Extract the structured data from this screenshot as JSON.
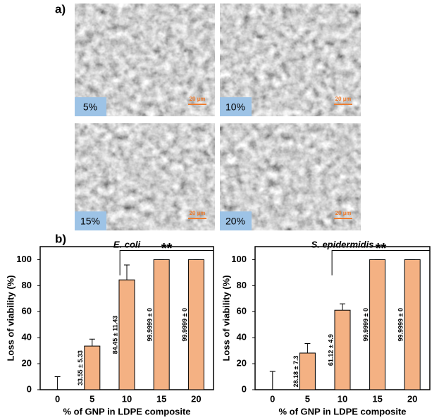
{
  "panels": {
    "a": {
      "label": "a)",
      "images": [
        {
          "label": "5%",
          "scale": "20 µm"
        },
        {
          "label": "10%",
          "scale": "20 µm"
        },
        {
          "label": "15%",
          "scale": "20 µm"
        },
        {
          "label": "20%",
          "scale": "20 µm"
        }
      ]
    },
    "b": {
      "label": "b)"
    }
  },
  "chart_data": [
    {
      "type": "bar",
      "title": "E. coli",
      "x_label": "% of GNP in LDPE composite",
      "y_label": "Loss of viability (%)",
      "categories": [
        "0",
        "5",
        "10",
        "15",
        "20"
      ],
      "values": [
        0,
        33.55,
        84.45,
        99.9999,
        99.9999
      ],
      "errors": [
        10,
        5.33,
        11.43,
        0,
        0
      ],
      "value_labels": [
        null,
        "33.55 ± 5.33",
        "84.45 ± 11.43",
        "99.9999 ± 0",
        "99.9999 ± 0"
      ],
      "color": "#f4b183",
      "ylim": [
        0,
        110
      ],
      "yticks": [
        0,
        20,
        40,
        60,
        80,
        100
      ],
      "annotation": "**"
    },
    {
      "type": "bar",
      "title": "S. epidermidis",
      "x_label": "% of GNP in LDPE composite",
      "y_label": "Loss of viability (%)",
      "categories": [
        "0",
        "5",
        "10",
        "15",
        "20"
      ],
      "values": [
        0,
        28.18,
        61.12,
        99.9999,
        99.9999
      ],
      "errors": [
        14,
        7.3,
        4.9,
        0,
        0
      ],
      "value_labels": [
        null,
        "28.18 ± 7.3",
        "61.12 ± 4.9",
        "99.9999 ± 0",
        "99.9999 ± 0"
      ],
      "color": "#f4b183",
      "ylim": [
        0,
        110
      ],
      "yticks": [
        0,
        20,
        40,
        60,
        80,
        100
      ],
      "annotation": "**"
    }
  ]
}
